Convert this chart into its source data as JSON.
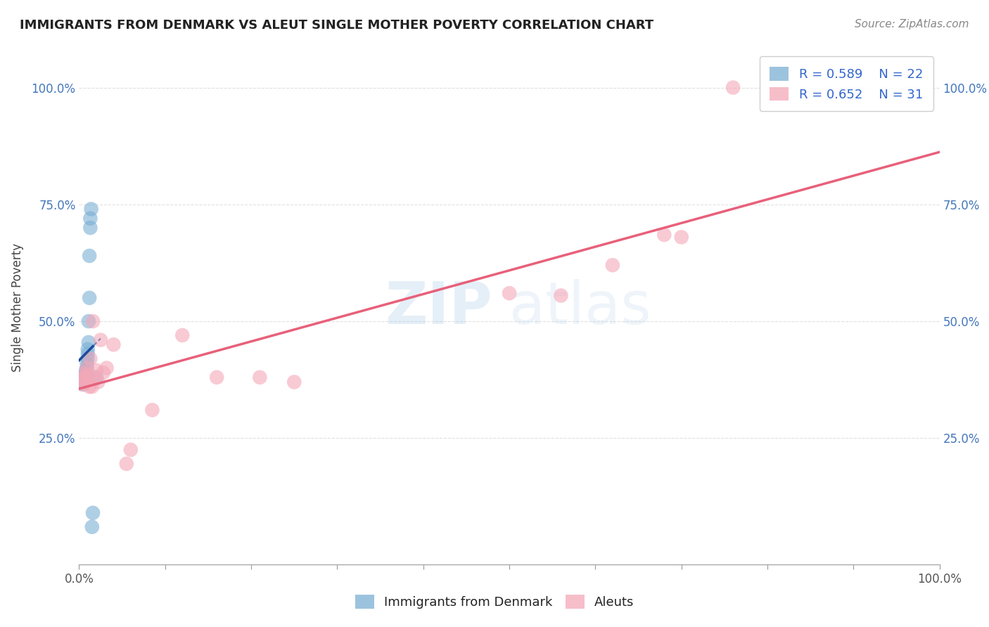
{
  "title": "IMMIGRANTS FROM DENMARK VS ALEUT SINGLE MOTHER POVERTY CORRELATION CHART",
  "source": "Source: ZipAtlas.com",
  "ylabel": "Single Mother Poverty",
  "watermark": "ZIPatlas",
  "legend_blue_r": "R = 0.589",
  "legend_blue_n": "N = 22",
  "legend_pink_r": "R = 0.652",
  "legend_pink_n": "N = 31",
  "legend_blue_label": "Immigrants from Denmark",
  "legend_pink_label": "Aleuts",
  "blue_color": "#7BAFD4",
  "pink_color": "#F4A8B8",
  "blue_line_color": "#1A4A9C",
  "pink_line_color": "#E8607A",
  "xlim": [
    0.0,
    1.0
  ],
  "ylim": [
    -0.02,
    1.08
  ],
  "xtick_labels": [
    "0.0%",
    "",
    "",
    "",
    "",
    "",
    "",
    "",
    "",
    "",
    "100.0%"
  ],
  "xtick_vals": [
    0.0,
    0.1,
    0.2,
    0.3,
    0.4,
    0.5,
    0.6,
    0.7,
    0.8,
    0.9,
    1.0
  ],
  "ytick_labels": [
    "25.0%",
    "50.0%",
    "75.0%",
    "100.0%"
  ],
  "ytick_vals": [
    0.25,
    0.5,
    0.75,
    1.0
  ],
  "blue_x": [
    0.005,
    0.005,
    0.006,
    0.007,
    0.007,
    0.008,
    0.008,
    0.009,
    0.009,
    0.01,
    0.01,
    0.01,
    0.011,
    0.011,
    0.012,
    0.012,
    0.013,
    0.013,
    0.014,
    0.015,
    0.016,
    0.02
  ],
  "blue_y": [
    0.365,
    0.37,
    0.375,
    0.38,
    0.385,
    0.39,
    0.395,
    0.4,
    0.41,
    0.42,
    0.43,
    0.44,
    0.455,
    0.5,
    0.55,
    0.64,
    0.7,
    0.72,
    0.74,
    0.06,
    0.09,
    0.38
  ],
  "pink_x": [
    0.004,
    0.005,
    0.006,
    0.007,
    0.008,
    0.009,
    0.01,
    0.012,
    0.013,
    0.015,
    0.016,
    0.018,
    0.02,
    0.022,
    0.025,
    0.028,
    0.032,
    0.04,
    0.055,
    0.06,
    0.085,
    0.12,
    0.16,
    0.21,
    0.25,
    0.5,
    0.56,
    0.62,
    0.68,
    0.7,
    0.76
  ],
  "pink_y": [
    0.365,
    0.375,
    0.38,
    0.37,
    0.39,
    0.4,
    0.385,
    0.36,
    0.42,
    0.36,
    0.5,
    0.38,
    0.395,
    0.37,
    0.46,
    0.39,
    0.4,
    0.45,
    0.195,
    0.225,
    0.31,
    0.47,
    0.38,
    0.38,
    0.37,
    0.56,
    0.555,
    0.62,
    0.685,
    0.68,
    1.0
  ],
  "background_color": "#FFFFFF",
  "grid_color": "#DDDDDD"
}
